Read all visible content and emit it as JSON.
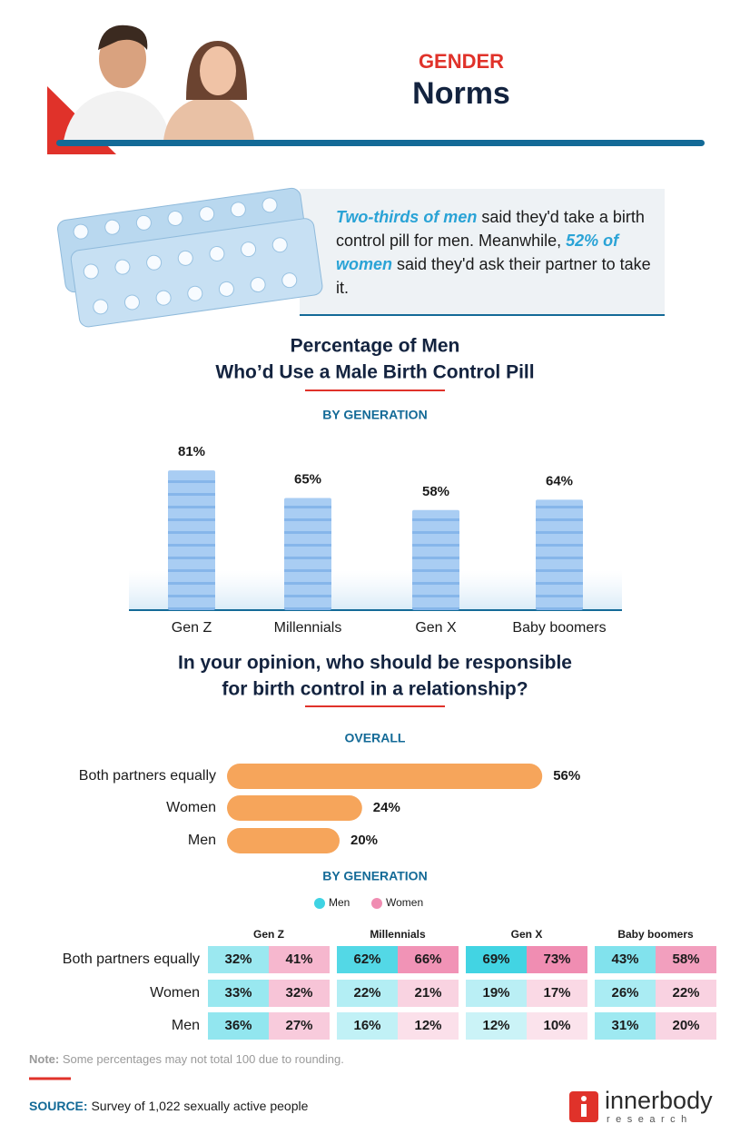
{
  "header": {
    "kicker": "GENDER",
    "title": "Norms"
  },
  "intro": [
    "Two-thirds of men",
    " said they'd take a birth control pill for men. Meanwhile, ",
    "52% of women",
    " said they'd ask their partner to take it."
  ],
  "chart_data": [
    {
      "type": "bar",
      "title": [
        "Percentage of Men",
        "Who’d Use a Male Birth Control Pill"
      ],
      "subtitle": "BY GENERATION",
      "categories": [
        "Gen Z",
        "Millennials",
        "Gen X",
        "Baby boomers"
      ],
      "values": [
        81,
        65,
        58,
        64
      ],
      "value_labels": [
        "81%",
        "65%",
        "58%",
        "64%"
      ],
      "color": "#a9cdf3"
    },
    {
      "type": "barh",
      "title": [
        "In your opinion, who should be responsible",
        "for birth control in a relationship?"
      ],
      "subtitle": "OVERALL",
      "categories": [
        "Both partners equally",
        "Women",
        "Men"
      ],
      "values": [
        56,
        24,
        20
      ],
      "value_labels": [
        "56%",
        "24%",
        "20%"
      ],
      "color": "#f6a55b"
    },
    {
      "type": "heatmap",
      "subtitle": "BY GENERATION",
      "groups": [
        "Gen Z",
        "Millennials",
        "Gen X",
        "Baby boomers"
      ],
      "categories": [
        "Both partners equally",
        "Women",
        "Men"
      ],
      "series": [
        {
          "name": "Men",
          "color": "#3fd3e3",
          "values": [
            [
              32,
              33,
              36
            ],
            [
              62,
              22,
              16
            ],
            [
              69,
              19,
              12
            ],
            [
              43,
              26,
              31
            ]
          ],
          "value_labels": [
            [
              "32%",
              "33%",
              "36%"
            ],
            [
              "62%",
              "22%",
              "16%"
            ],
            [
              "69%",
              "19%",
              "12%"
            ],
            [
              "43%",
              "26%",
              "31%"
            ]
          ]
        },
        {
          "name": "Women",
          "color": "#f08db2",
          "values": [
            [
              41,
              32,
              27
            ],
            [
              66,
              21,
              12
            ],
            [
              73,
              17,
              10
            ],
            [
              58,
              22,
              20
            ]
          ],
          "value_labels": [
            [
              "41%",
              "32%",
              "27%"
            ],
            [
              "66%",
              "21%",
              "12%"
            ],
            [
              "73%",
              "17%",
              "10%"
            ],
            [
              "58%",
              "22%",
              "20%"
            ]
          ]
        }
      ]
    }
  ],
  "note": {
    "label": "Note:",
    "text": " Some percentages may not total 100 due to rounding."
  },
  "source": {
    "label": "SOURCE:",
    "text": " Survey of 1,022 sexually active people"
  },
  "logo": {
    "name": "innerbody",
    "sub": "research"
  }
}
